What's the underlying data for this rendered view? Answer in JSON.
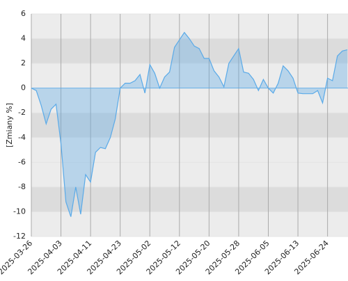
{
  "chart_data": {
    "type": "area",
    "y_label": "[Zmiany %]",
    "x": [
      "2025-03-26",
      "2025-03-27",
      "2025-03-28",
      "2025-03-31",
      "2025-04-01",
      "2025-04-02",
      "2025-04-03",
      "2025-04-04",
      "2025-04-07",
      "2025-04-08",
      "2025-04-09",
      "2025-04-10",
      "2025-04-11",
      "2025-04-14",
      "2025-04-15",
      "2025-04-16",
      "2025-04-17",
      "2025-04-22",
      "2025-04-23",
      "2025-04-24",
      "2025-04-25",
      "2025-04-28",
      "2025-04-29",
      "2025-04-30",
      "2025-05-02",
      "2025-05-05",
      "2025-05-06",
      "2025-05-07",
      "2025-05-08",
      "2025-05-09",
      "2025-05-12",
      "2025-05-13",
      "2025-05-14",
      "2025-05-15",
      "2025-05-16",
      "2025-05-19",
      "2025-05-20",
      "2025-05-21",
      "2025-05-22",
      "2025-05-23",
      "2025-05-26",
      "2025-05-27",
      "2025-05-28",
      "2025-05-29",
      "2025-05-30",
      "2025-06-02",
      "2025-06-03",
      "2025-06-04",
      "2025-06-05",
      "2025-06-06",
      "2025-06-09",
      "2025-06-10",
      "2025-06-11",
      "2025-06-12",
      "2025-06-13",
      "2025-06-16",
      "2025-06-17",
      "2025-06-18",
      "2025-06-20",
      "2025-06-23",
      "2025-06-24",
      "2025-06-25",
      "2025-06-26",
      "2025-06-27",
      "2025-06-30"
    ],
    "series": [
      {
        "color": "#5aaae8",
        "values": [
          0,
          -0.2,
          -1.4,
          -2.9,
          -1.7,
          -1.3,
          -4.5,
          -9.2,
          -10.4,
          -8,
          -10.2,
          -7,
          -7.6,
          -5.2,
          -4.8,
          -4.9,
          -4,
          -2.5,
          0,
          0.4,
          0.4,
          0.6,
          1.1,
          -0.4,
          1.9,
          1.2,
          0,
          0.9,
          1.3,
          3.3,
          3.9,
          4.5,
          4.0,
          3.4,
          3.2,
          2.4,
          2.4,
          1.4,
          0.9,
          0.1,
          2.0,
          2.6,
          3.2,
          1.3,
          1.2,
          0.7,
          -0.2,
          0.7,
          0,
          -0.4,
          0.4,
          1.8,
          1.4,
          0.8,
          -0.4,
          -0.45,
          -0.45,
          -0.45,
          -0.2,
          -1.2,
          0.8,
          0.6,
          2.6,
          3.0,
          3.1
        ]
      }
    ],
    "xticks": [
      "2025-03-26",
      "2025-04-03",
      "2025-04-11",
      "2025-04-23",
      "2025-05-02",
      "2025-05-12",
      "2025-05-20",
      "2025-05-28",
      "2025-06-05",
      "2025-06-13",
      "2025-06-24"
    ],
    "ylim": [
      -12,
      6
    ],
    "yticks": [
      -12,
      -10,
      -8,
      -6,
      -4,
      -2,
      0,
      2,
      4,
      6
    ],
    "grid": true
  }
}
